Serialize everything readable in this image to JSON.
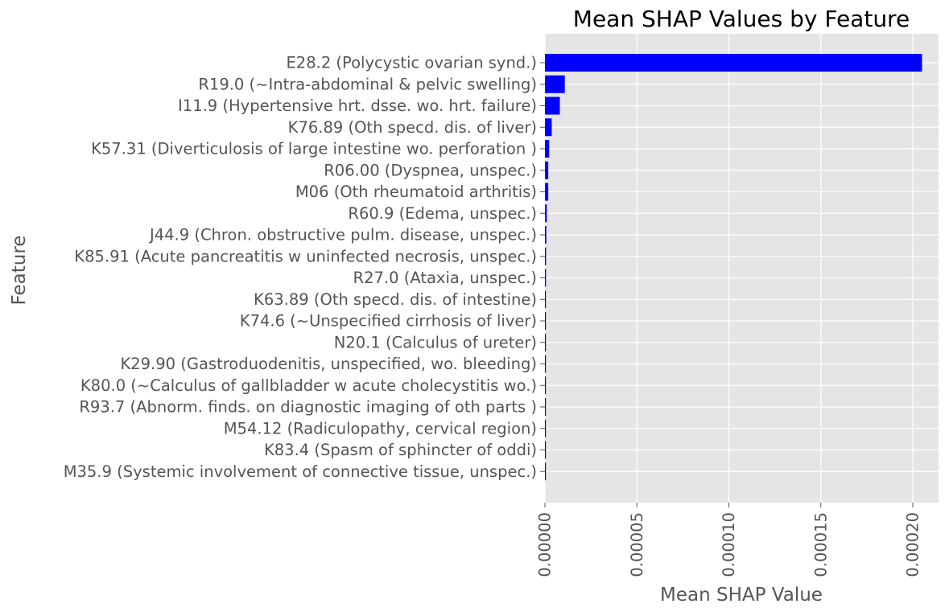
{
  "chart_data": {
    "type": "bar",
    "orientation": "horizontal",
    "title": "Mean SHAP Values by Feature",
    "xlabel": "Mean SHAP Value",
    "ylabel": "Feature",
    "xlim": [
      0,
      0.000214
    ],
    "xticks": [
      0,
      5e-05,
      0.0001,
      0.00015,
      0.0002
    ],
    "xtick_labels": [
      "0.00000",
      "0.00005",
      "0.00010",
      "0.00015",
      "0.00020"
    ],
    "grid": true,
    "bar_color": "#0000ff",
    "background_color": "#e5e5e5",
    "categories": [
      "E28.2 (Polycystic ovarian synd.)",
      "R19.0 (~Intra-abdominal & pelvic swelling)",
      "I11.9 (Hypertensive hrt. dsse. wo. hrt. failure)",
      "K76.89 (Oth specd. dis. of liver)",
      "K57.31 (Diverticulosis of large intestine wo. perforation )",
      "R06.00 (Dyspnea, unspec.)",
      "M06 (Oth rheumatoid arthritis)",
      "R60.9 (Edema, unspec.)",
      "J44.9 (Chron. obstructive pulm. disease, unspec.)",
      "K85.91 (Acute pancreatitis w uninfected necrosis, unspec.)",
      "R27.0 (Ataxia, unspec.)",
      "K63.89 (Oth specd. dis. of intestine)",
      "K74.6 (~Unspecified cirrhosis of liver)",
      "N20.1 (Calculus of ureter)",
      "K29.90 (Gastroduodenitis, unspecified, wo. bleeding)",
      "K80.0 (~Calculus of gallbladder w acute cholecystitis wo.)",
      "R93.7 (Abnorm. finds. on diagnostic imaging of oth parts )",
      "M54.12 (Radiculopathy, cervical region)",
      "K83.4 (Spasm of sphincter of oddi)",
      "M35.9 (Systemic involvement of connective tissue, unspec.)"
    ],
    "values": [
      0.000205,
      1.08e-05,
      8.1e-06,
      3.7e-06,
      2.3e-06,
      1.8e-06,
      1.8e-06,
      1e-06,
      7.5e-07,
      6e-07,
      5.5e-07,
      2.8e-07,
      2e-07,
      1.9e-07,
      1.8e-07,
      1.7e-07,
      1.5e-07,
      1.2e-07,
      1.1e-07,
      7e-08
    ]
  }
}
